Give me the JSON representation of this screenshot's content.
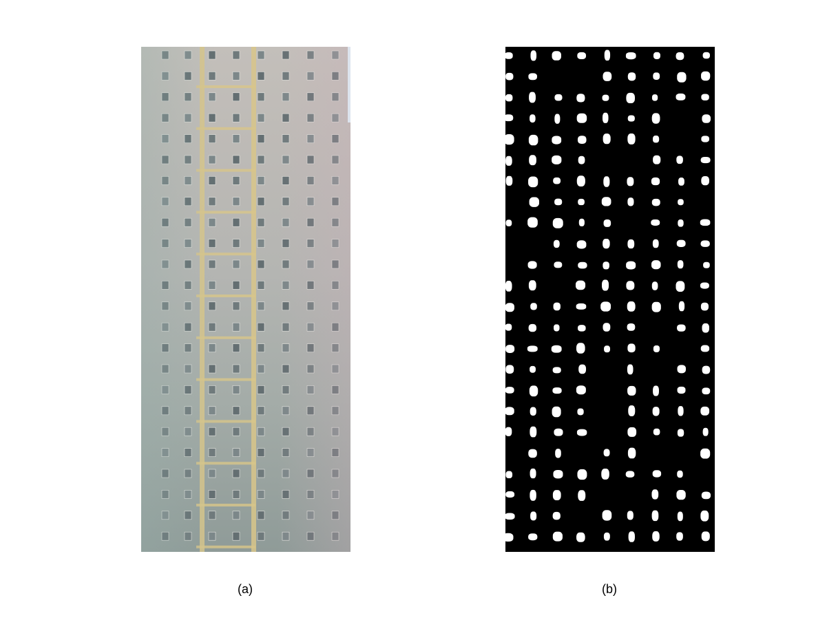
{
  "figure": {
    "panel_a": {
      "caption": "(a)",
      "content": "photograph-building-facade",
      "facade_color": "#bdbab6",
      "window_color": "#6f7a7c",
      "column_color": "#d8c58a"
    },
    "panel_b": {
      "caption": "(b)",
      "content": "binary-segmentation-mask",
      "background_color": "#000000",
      "blob_color": "#ffffff"
    }
  }
}
